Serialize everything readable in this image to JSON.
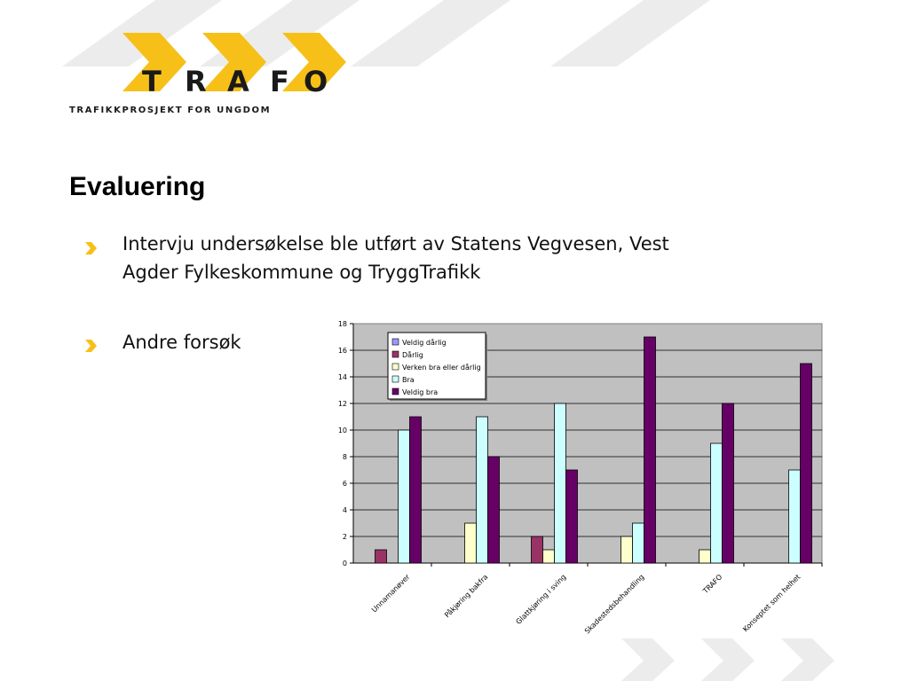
{
  "logo": {
    "letters": [
      "T",
      "R",
      "A",
      "F",
      "O"
    ],
    "tagline": "TRAFIKKPROSJEKT FOR UNGDOM",
    "colors": {
      "chevron": "#f6c018",
      "text": "#1a1a1a"
    }
  },
  "slide": {
    "title": "Evaluering",
    "bullets": [
      {
        "lines": [
          "Intervju undersøkelse ble utført av Statens Vegvesen, Vest",
          "Agder Fylkeskommune og TryggTrafikk"
        ]
      },
      {
        "lines": [
          "Andre forsøk"
        ]
      }
    ],
    "bullet_color": "#f6c018"
  },
  "chart_data": {
    "type": "bar",
    "categories": [
      "Unnamanøver",
      "Påkjøring bakfra",
      "Glattkjøring i sving",
      "Skadestedsbehandling",
      "TRAFO",
      "Konseptet som helhet"
    ],
    "series": [
      {
        "name": "Veldig dårlig",
        "color": "#9999ff",
        "values": [
          0,
          0,
          0,
          0,
          0,
          0
        ]
      },
      {
        "name": "Dårlig",
        "color": "#993366",
        "values": [
          1,
          0,
          2,
          0,
          0,
          0
        ]
      },
      {
        "name": "Verken bra eller dårlig",
        "color": "#ffffcc",
        "values": [
          0,
          3,
          1,
          2,
          1,
          0
        ]
      },
      {
        "name": "Bra",
        "color": "#ccffff",
        "values": [
          10,
          11,
          12,
          3,
          9,
          7
        ]
      },
      {
        "name": "Veldig bra",
        "color": "#660066",
        "values": [
          11,
          8,
          7,
          17,
          12,
          15
        ]
      }
    ],
    "yticks": [
      "0",
      "2",
      "4",
      "6",
      "8",
      "10",
      "12",
      "14",
      "16",
      "18"
    ],
    "ylim": [
      0,
      18
    ],
    "grid": true,
    "legend_position": "top-left",
    "plot_background": "#c0c0c0"
  }
}
